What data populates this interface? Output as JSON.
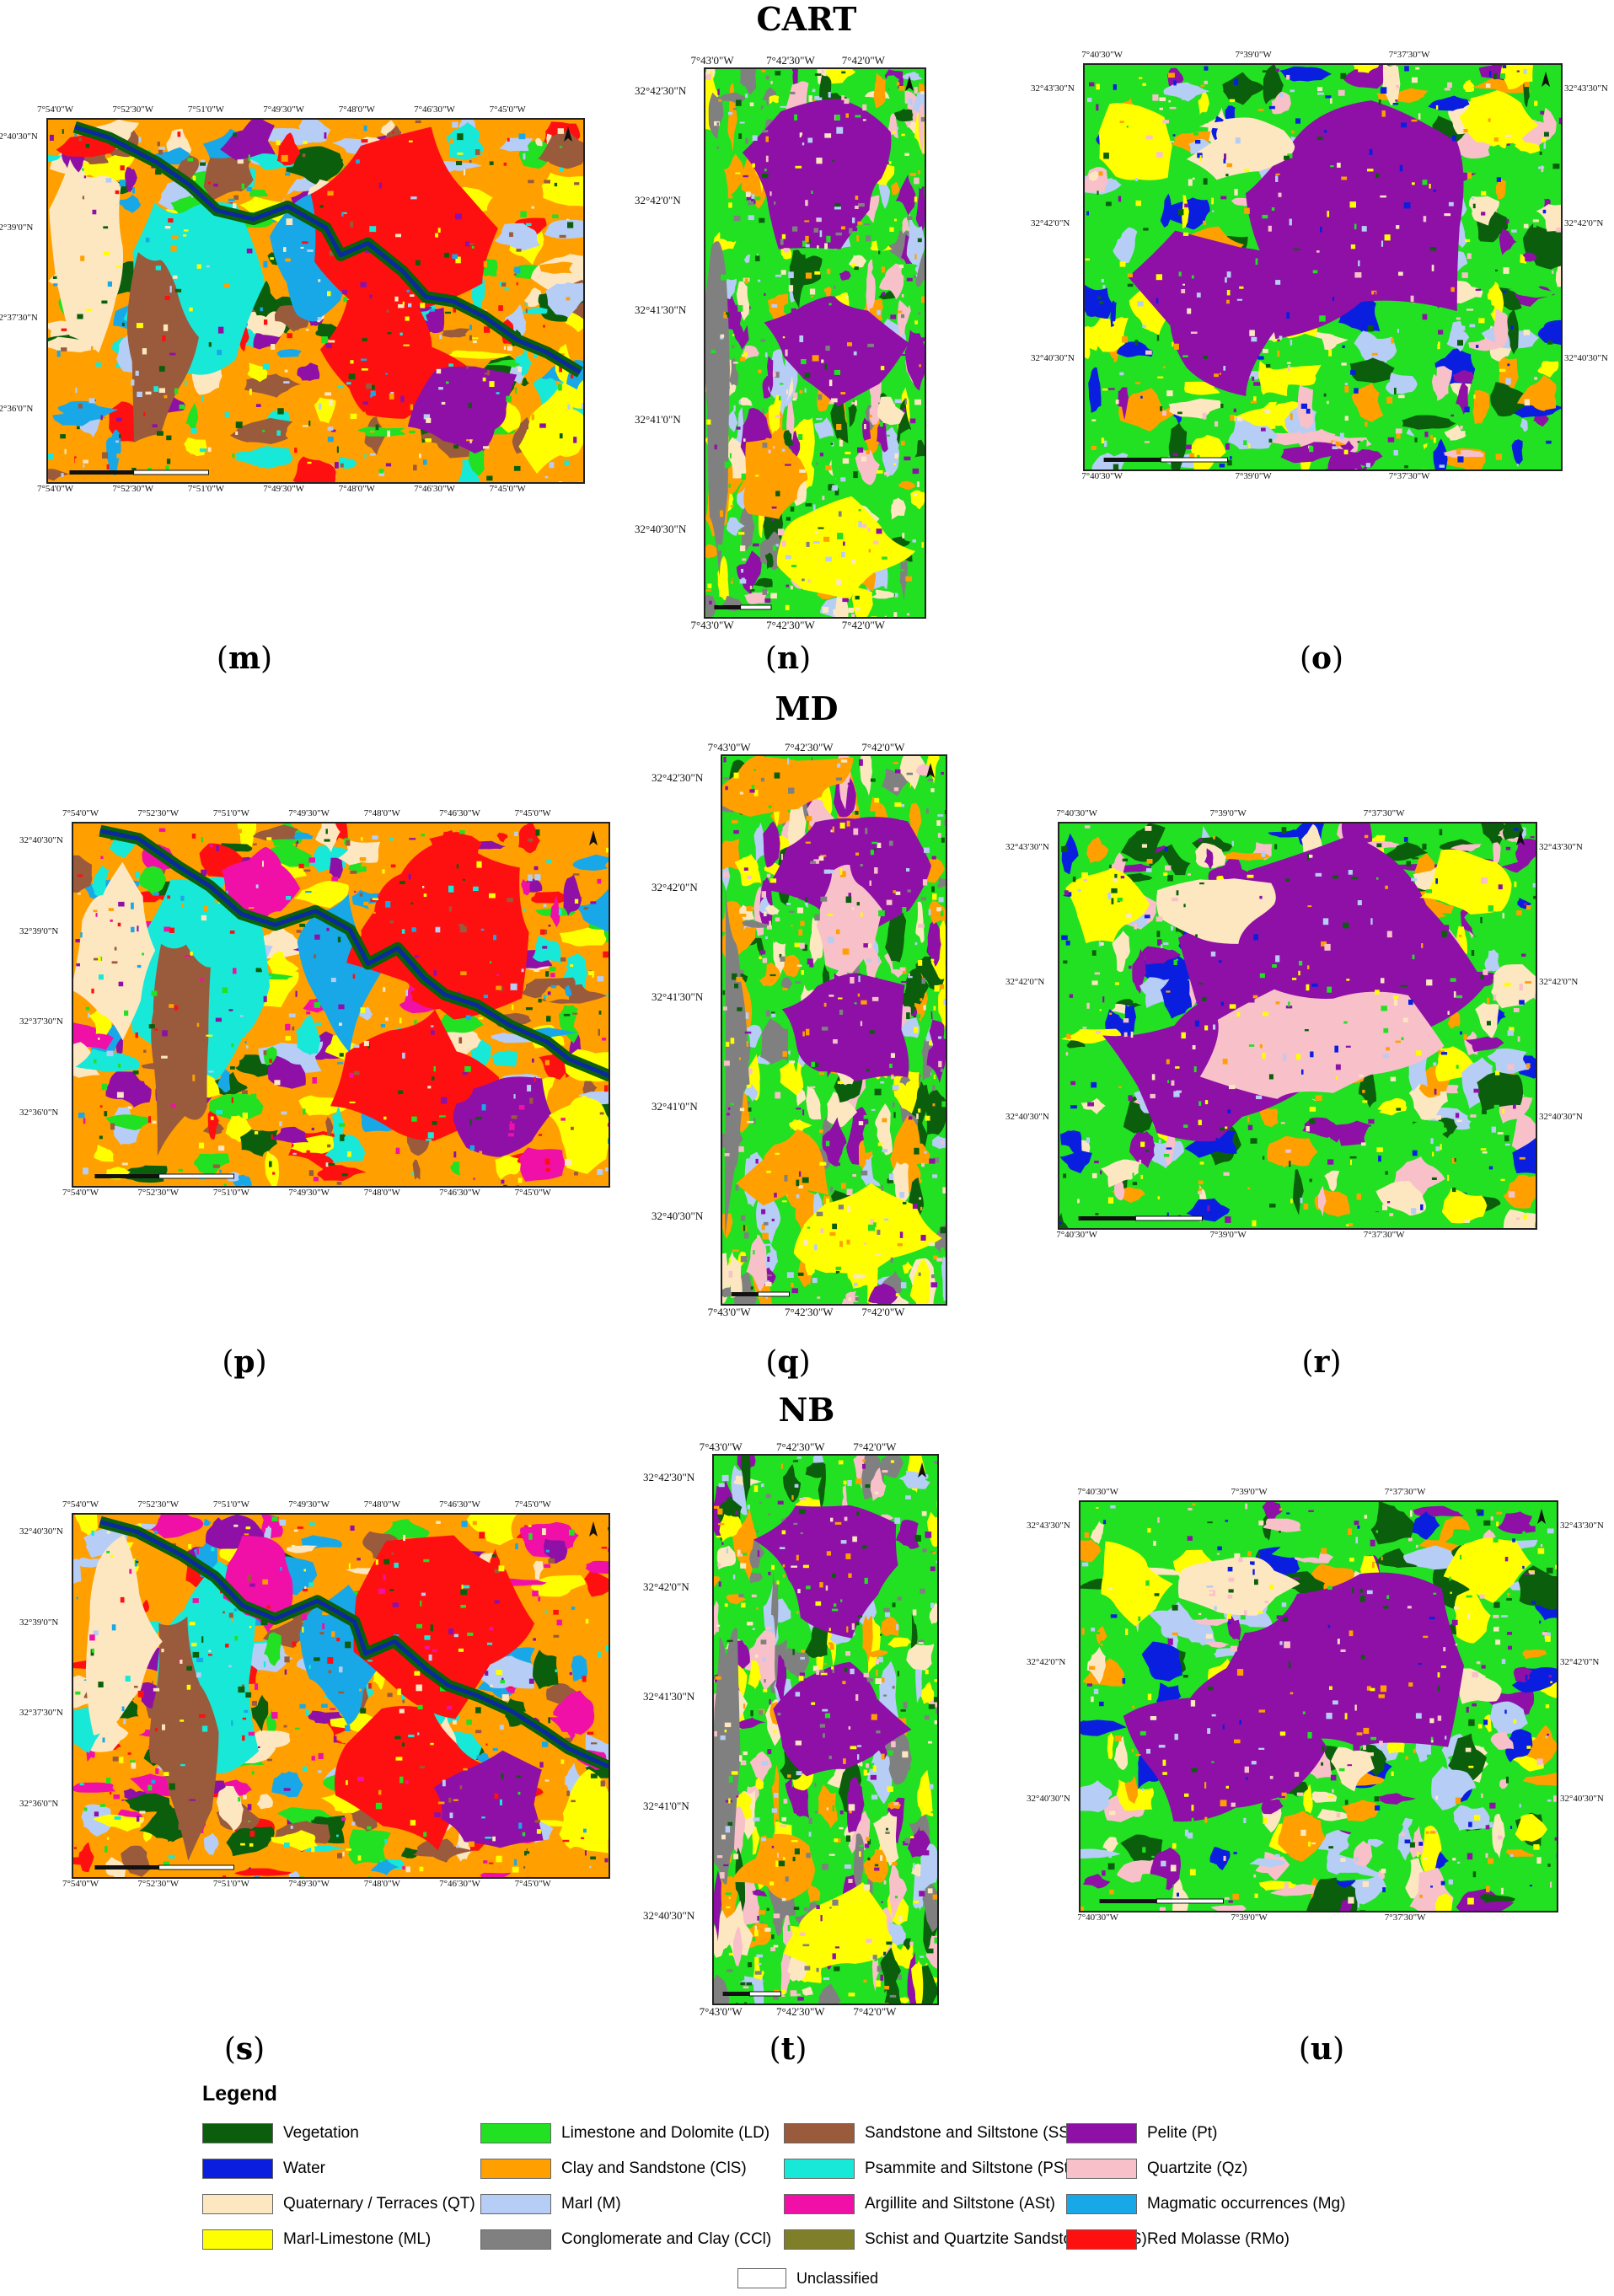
{
  "rows": [
    {
      "title": "CART"
    },
    {
      "title": "MD"
    },
    {
      "title": "NB"
    }
  ],
  "panels": [
    {
      "label": "m",
      "variant": "large"
    },
    {
      "label": "n",
      "variant": "narrow"
    },
    {
      "label": "o",
      "variant": "medium"
    },
    {
      "label": "p",
      "variant": "large"
    },
    {
      "label": "q",
      "variant": "narrow"
    },
    {
      "label": "r",
      "variant": "medium"
    },
    {
      "label": "s",
      "variant": "large"
    },
    {
      "label": "t",
      "variant": "narrow"
    },
    {
      "label": "u",
      "variant": "medium"
    }
  ],
  "coords": {
    "large_top": [
      "7°54'0\"W",
      "7°52'30\"W",
      "7°51'0\"W",
      "7°49'30\"W",
      "7°48'0\"W",
      "7°46'30\"W",
      "7°45'0\"W"
    ],
    "large_left": [
      "32°40'30\"N",
      "32°39'0\"N",
      "32°37'30\"N",
      "32°36'0\"N"
    ],
    "narrow_top": [
      "7°43'0\"W",
      "7°42'30\"W",
      "7°42'0\"W"
    ],
    "narrow_left": [
      "32°42'30\"N",
      "32°42'0\"N",
      "32°41'30\"N",
      "32°41'0\"N",
      "32°40'30\"N"
    ],
    "medium_top": [
      "7°40'30\"W",
      "7°39'0\"W",
      "7°37'30\"W"
    ],
    "medium_left": [
      "32°43'30\"N",
      "32°42'0\"N",
      "32°40'30\"N"
    ]
  },
  "legend": {
    "title": "Legend",
    "items": [
      {
        "label": "Vegetation",
        "color": "#0b5e0b"
      },
      {
        "label": "Water",
        "color": "#0a1ee0"
      },
      {
        "label": "Quaternary / Terraces (QT)",
        "color": "#fde7c0"
      },
      {
        "label": "Marl-Limestone (ML)",
        "color": "#ffff00"
      },
      {
        "label": "Limestone and Dolomite (LD)",
        "color": "#22e022"
      },
      {
        "label": "Clay and Sandstone (ClS)",
        "color": "#ffa000"
      },
      {
        "label": "Marl (M)",
        "color": "#b6cdf5"
      },
      {
        "label": "Conglomerate and Clay (CCl)",
        "color": "#808080"
      },
      {
        "label": "Sandstone and Siltstone (SSt)",
        "color": "#9a5a3c"
      },
      {
        "label": "Psammite and Siltstone (PSt)",
        "color": "#18e8d8"
      },
      {
        "label": "Argillite and Siltstone (ASt)",
        "color": "#f010a8"
      },
      {
        "label": "Schist and Quartzite Sandstone (ScQS)",
        "color": "#7f7f2a"
      },
      {
        "label": "Pelite (Pt)",
        "color": "#8e10a6"
      },
      {
        "label": "Quartzite (Qz)",
        "color": "#f8c0c8"
      },
      {
        "label": "Magmatic occurrences (Mg)",
        "color": "#18a8e8"
      },
      {
        "label": "Red Molasse (RMo)",
        "color": "#ff1010"
      }
    ],
    "unclassified": {
      "label": "Unclassified",
      "color": "#ffffff"
    }
  }
}
